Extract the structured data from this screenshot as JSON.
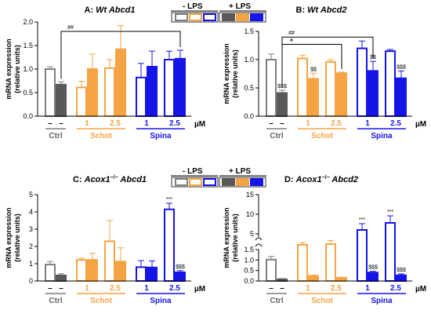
{
  "colors": {
    "ctrl": "#7f7f7f",
    "ctrl_lps": "#595959",
    "schot": "#f5a443",
    "spina": "#1515e8",
    "error_bar": "#7f7f7f",
    "axis": "#000000",
    "bracket": "#000000"
  },
  "legend": {
    "minus_lps": "- LPS",
    "plus_lps": "+ LPS"
  },
  "common": {
    "ylabel_line1": "mRNA expression",
    "ylabel_line2": "(relative units)",
    "dash": "–",
    "unit": "µM",
    "group_ctrl": "Ctrl",
    "group_schot": "Schot",
    "group_spina": "Spina"
  },
  "chart_data": [
    {
      "panel": "A",
      "type": "bar",
      "title_prefix": "A: ",
      "title_italic": "Wt Abcd1",
      "title_plain": "",
      "ylim": [
        0,
        2.0
      ],
      "yticks": [
        0.0,
        0.5,
        1.0,
        1.5,
        2.0
      ],
      "y_tick_labels": [
        "0.0",
        "0.5",
        "1.0",
        "1.5",
        "2.0"
      ],
      "doses": [
        "–",
        "–",
        "1",
        "2.5",
        "1",
        "2.5"
      ],
      "bars": [
        {
          "group": "Ctrl",
          "dose": "–",
          "lps": false,
          "value": 1.0,
          "err": 0.05
        },
        {
          "group": "Ctrl",
          "dose": "–",
          "lps": true,
          "value": 0.67,
          "err": 0.06
        },
        {
          "group": "Schot",
          "dose": "1",
          "lps": false,
          "value": 0.61,
          "err": 0.13
        },
        {
          "group": "Schot",
          "dose": "1",
          "lps": true,
          "value": 1.0,
          "err": 0.32
        },
        {
          "group": "Schot",
          "dose": "2.5",
          "lps": false,
          "value": 1.02,
          "err": 0.18
        },
        {
          "group": "Schot",
          "dose": "2.5",
          "lps": true,
          "value": 1.42,
          "err": 0.5
        },
        {
          "group": "Spina",
          "dose": "1",
          "lps": false,
          "value": 0.82,
          "err": 0.3
        },
        {
          "group": "Spina",
          "dose": "1",
          "lps": true,
          "value": 1.05,
          "err": 0.33
        },
        {
          "group": "Spina",
          "dose": "2.5",
          "lps": false,
          "value": 1.2,
          "err": 0.18
        },
        {
          "group": "Spina",
          "dose": "2.5",
          "lps": true,
          "value": 1.22,
          "err": 0.18
        }
      ],
      "annotations": [],
      "brackets": [
        {
          "label": "##",
          "from_bar": 1,
          "to_bar": 9,
          "y": 1.8
        }
      ]
    },
    {
      "panel": "B",
      "type": "bar",
      "title_prefix": "B: ",
      "title_italic": "Wt Abcd2",
      "title_plain": "",
      "ylim": [
        0,
        1.5
      ],
      "yticks": [
        0.0,
        0.5,
        1.0,
        1.5
      ],
      "y_tick_labels": [
        "0.0",
        "0.5",
        "1.0",
        "1.5"
      ],
      "doses": [
        "–",
        "–",
        "1",
        "2.5",
        "1",
        "2.5"
      ],
      "bars": [
        {
          "group": "Ctrl",
          "dose": "–",
          "lps": false,
          "value": 1.0,
          "err": 0.1
        },
        {
          "group": "Ctrl",
          "dose": "–",
          "lps": true,
          "value": 0.41,
          "err": 0.05
        },
        {
          "group": "Schot",
          "dose": "1",
          "lps": false,
          "value": 1.02,
          "err": 0.06
        },
        {
          "group": "Schot",
          "dose": "1",
          "lps": true,
          "value": 0.66,
          "err": 0.1
        },
        {
          "group": "Schot",
          "dose": "2.5",
          "lps": false,
          "value": 0.96,
          "err": 0.04
        },
        {
          "group": "Schot",
          "dose": "2.5",
          "lps": true,
          "value": 0.76,
          "err": 0.02
        },
        {
          "group": "Spina",
          "dose": "1",
          "lps": false,
          "value": 1.2,
          "err": 0.13
        },
        {
          "group": "Spina",
          "dose": "1",
          "lps": true,
          "value": 0.8,
          "err": 0.17
        },
        {
          "group": "Spina",
          "dose": "2.5",
          "lps": false,
          "value": 1.15,
          "err": 0.03
        },
        {
          "group": "Spina",
          "dose": "2.5",
          "lps": true,
          "value": 0.67,
          "err": 0.13
        }
      ],
      "annotations": [
        {
          "bar": 1,
          "text": "$$$",
          "pos": "above"
        },
        {
          "bar": 3,
          "text": "$$",
          "pos": "above"
        },
        {
          "bar": 7,
          "text": "$$",
          "pos": "above"
        },
        {
          "bar": 9,
          "text": "$$$",
          "pos": "above"
        }
      ],
      "brackets": [
        {
          "label": "##",
          "from_bar": 1,
          "to_bar": 7,
          "y": 1.4
        },
        {
          "label": "#",
          "from_bar": 1,
          "to_bar": 5,
          "y": 1.27
        }
      ]
    },
    {
      "panel": "C",
      "type": "bar",
      "title_prefix": "C: ",
      "title_italic": "Acox1",
      "title_sup": "−/−",
      "title_plain": "Abcd1",
      "ylim": [
        0,
        5
      ],
      "yticks": [
        0,
        1,
        2,
        3,
        4,
        5
      ],
      "y_tick_labels": [
        "0",
        "1",
        "2",
        "3",
        "4",
        "5"
      ],
      "doses": [
        "–",
        "–",
        "1",
        "2.5",
        "1",
        "2.5"
      ],
      "bars": [
        {
          "group": "Ctrl",
          "dose": "–",
          "lps": false,
          "value": 0.95,
          "err": 0.18
        },
        {
          "group": "Ctrl",
          "dose": "–",
          "lps": true,
          "value": 0.32,
          "err": 0.1
        },
        {
          "group": "Schot",
          "dose": "1",
          "lps": false,
          "value": 1.22,
          "err": 0.1
        },
        {
          "group": "Schot",
          "dose": "1",
          "lps": true,
          "value": 1.22,
          "err": 0.38
        },
        {
          "group": "Schot",
          "dose": "2.5",
          "lps": false,
          "value": 2.3,
          "err": 1.2
        },
        {
          "group": "Schot",
          "dose": "2.5",
          "lps": true,
          "value": 1.12,
          "err": 0.8
        },
        {
          "group": "Spina",
          "dose": "1",
          "lps": false,
          "value": 0.8,
          "err": 0.38
        },
        {
          "group": "Spina",
          "dose": "1",
          "lps": true,
          "value": 0.78,
          "err": 0.38
        },
        {
          "group": "Spina",
          "dose": "2.5",
          "lps": false,
          "value": 4.15,
          "err": 0.35
        },
        {
          "group": "Spina",
          "dose": "2.5",
          "lps": true,
          "value": 0.5,
          "err": 0.1
        }
      ],
      "annotations": [
        {
          "bar": 8,
          "text": "***",
          "pos": "above"
        },
        {
          "bar": 9,
          "text": "$$$",
          "pos": "above"
        }
      ],
      "brackets": []
    },
    {
      "panel": "D",
      "type": "bar",
      "title_prefix": "D: ",
      "title_italic": "Acox1",
      "title_sup": "−/−",
      "title_plain": "Abcd2",
      "broken_axis": true,
      "ylim_lower": [
        0,
        1.5
      ],
      "ylim_upper": [
        5,
        15
      ],
      "y_tick_labels_lower": [
        "0.0",
        "0.5",
        "1.0",
        "1.5"
      ],
      "y_tick_labels_upper": [
        "5",
        "10",
        "15"
      ],
      "doses": [
        "–",
        "–",
        "1",
        "2.5",
        "1",
        "2.5"
      ],
      "bars": [
        {
          "group": "Ctrl",
          "dose": "–",
          "lps": false,
          "value": 1.02,
          "err": 0.15
        },
        {
          "group": "Ctrl",
          "dose": "–",
          "lps": true,
          "value": 0.08,
          "err": 0.03
        },
        {
          "group": "Schot",
          "dose": "1",
          "lps": false,
          "value": 2.2,
          "err": 0.6
        },
        {
          "group": "Schot",
          "dose": "1",
          "lps": true,
          "value": 0.24,
          "err": 0.04
        },
        {
          "group": "Schot",
          "dose": "2.5",
          "lps": false,
          "value": 2.4,
          "err": 0.9
        },
        {
          "group": "Schot",
          "dose": "2.5",
          "lps": true,
          "value": 0.15,
          "err": 0.03
        },
        {
          "group": "Spina",
          "dose": "1",
          "lps": false,
          "value": 6.0,
          "err": 1.6
        },
        {
          "group": "Spina",
          "dose": "1",
          "lps": true,
          "value": 0.4,
          "err": 0.06
        },
        {
          "group": "Spina",
          "dose": "2.5",
          "lps": false,
          "value": 7.8,
          "err": 1.8
        },
        {
          "group": "Spina",
          "dose": "2.5",
          "lps": true,
          "value": 0.27,
          "err": 0.07
        }
      ],
      "annotations": [
        {
          "bar": 6,
          "text": "***",
          "pos": "above"
        },
        {
          "bar": 7,
          "text": "$$$",
          "pos": "above"
        },
        {
          "bar": 8,
          "text": "***",
          "pos": "above"
        },
        {
          "bar": 9,
          "text": "$$$",
          "pos": "above"
        }
      ],
      "brackets": []
    }
  ]
}
